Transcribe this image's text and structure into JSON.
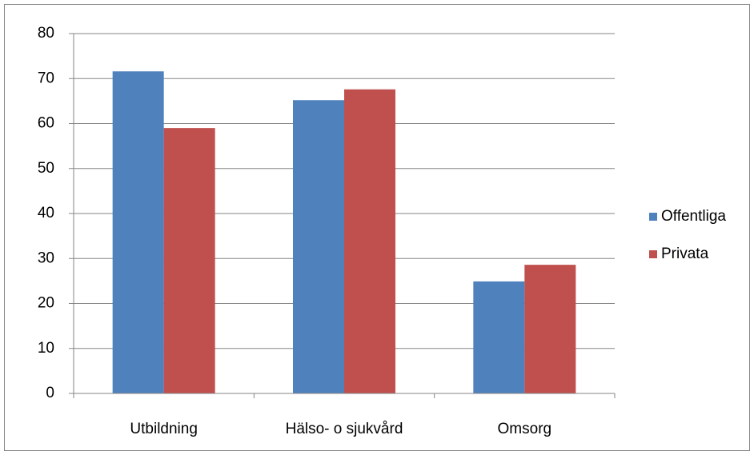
{
  "chart_data": {
    "type": "bar",
    "categories": [
      "Utbildning",
      "Hälso- o sjukvård",
      "Omsorg"
    ],
    "series": [
      {
        "name": "Offentliga",
        "color": "#4f81bd",
        "values": [
          71.6,
          65.2,
          24.9
        ]
      },
      {
        "name": "Privata",
        "color": "#c0504d",
        "values": [
          59.0,
          67.6,
          28.6
        ]
      }
    ],
    "ylim": [
      0,
      80
    ],
    "yticks": [
      0,
      10,
      20,
      30,
      40,
      50,
      60,
      70,
      80
    ],
    "grid": true,
    "legend": "right"
  }
}
